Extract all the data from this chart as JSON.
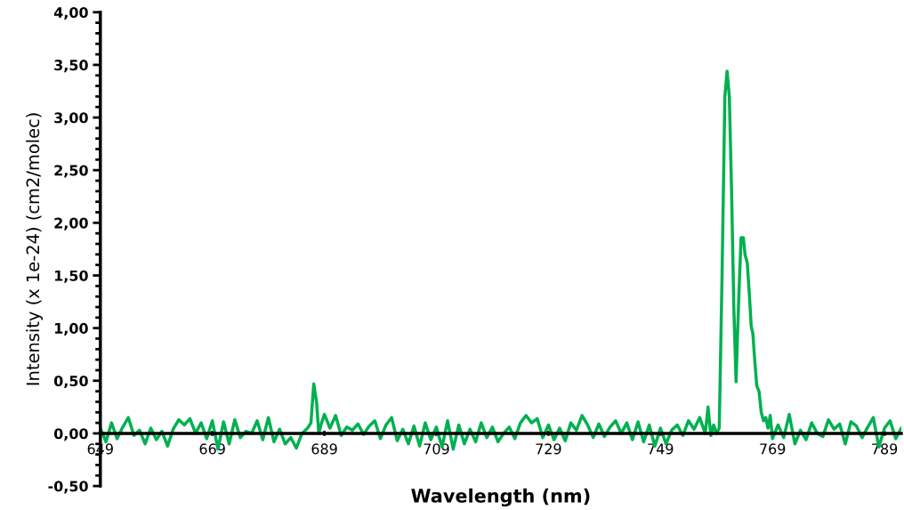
{
  "chart_data": {
    "type": "line",
    "xlabel": "Wavelength (nm)",
    "ylabel": "Intensity (x 1e-24) (cm2/molec)",
    "xlim": [
      649,
      792
    ],
    "xticks": [
      649,
      669,
      689,
      709,
      729,
      749,
      769,
      789
    ],
    "ylim": [
      -0.5,
      4.0
    ],
    "yticks": [
      {
        "value": -0.5,
        "label": "-0,50"
      },
      {
        "value": 0,
        "label": "0,00"
      },
      {
        "value": 0.5,
        "label": "0,50"
      },
      {
        "value": 1.0,
        "label": "1,00"
      },
      {
        "value": 1.5,
        "label": "1,50"
      },
      {
        "value": 2.0,
        "label": "2,00"
      },
      {
        "value": 2.5,
        "label": "2,50"
      },
      {
        "value": 3.0,
        "label": "3,00"
      },
      {
        "value": 3.5,
        "label": "3,50"
      },
      {
        "value": 4.0,
        "label": "4,00"
      }
    ],
    "grid": false,
    "marker": "none",
    "line_style": "solid",
    "series": [
      {
        "color": "#00b050",
        "x": [
          649,
          650,
          651,
          652,
          653,
          654,
          655,
          656,
          657,
          658,
          659,
          660,
          661,
          662,
          663,
          664,
          665,
          666,
          667,
          668,
          669,
          670,
          671,
          672,
          673,
          674,
          675,
          676,
          677,
          678,
          679,
          680,
          681,
          682,
          683,
          684,
          685,
          686,
          686.6,
          687.1,
          687.6,
          688,
          688.5,
          689,
          690,
          691,
          692,
          693,
          694,
          695,
          696,
          697,
          698,
          699,
          700,
          701,
          702,
          703,
          704,
          705,
          706,
          707,
          708,
          709,
          710,
          711,
          712,
          713,
          714,
          715,
          716,
          717,
          718,
          719,
          720,
          721,
          722,
          723,
          724,
          725,
          726,
          727,
          728,
          729,
          730,
          731,
          732,
          733,
          734,
          735,
          736,
          737,
          738,
          739,
          740,
          741,
          742,
          743,
          744,
          745,
          746,
          747,
          748,
          749,
          750,
          751,
          752,
          753,
          754,
          755,
          756,
          757,
          757.5,
          758,
          758.5,
          759,
          759.5,
          760,
          760.5,
          760.9,
          761.3,
          761.7,
          762.1,
          762.5,
          762.8,
          763.1,
          763.4,
          763.8,
          764.1,
          764.5,
          764.9,
          765.2,
          765.5,
          765.8,
          766.2,
          766.6,
          767,
          767.4,
          767.8,
          768.2,
          768.6,
          769,
          770,
          771,
          772,
          773,
          774,
          775,
          776,
          777,
          778,
          779,
          780,
          781,
          782,
          783,
          784,
          785,
          786,
          787,
          788,
          789,
          790,
          791,
          792
        ],
        "values": [
          0.05,
          -0.08,
          0.1,
          -0.05,
          0.06,
          0.15,
          -0.02,
          0.03,
          -0.1,
          0.05,
          -0.06,
          0.02,
          -0.12,
          0.04,
          0.13,
          0.08,
          0.14,
          0.0,
          0.1,
          -0.05,
          0.12,
          -0.15,
          0.11,
          -0.1,
          0.13,
          -0.04,
          0.02,
          0.0,
          0.12,
          -0.06,
          0.15,
          -0.08,
          0.04,
          -0.1,
          -0.04,
          -0.14,
          0.0,
          0.05,
          0.1,
          0.47,
          0.3,
          0.0,
          0.1,
          0.18,
          0.05,
          0.17,
          -0.02,
          0.06,
          0.03,
          0.09,
          -0.01,
          0.07,
          0.12,
          -0.05,
          0.08,
          0.15,
          -0.07,
          0.04,
          -0.1,
          0.07,
          -0.12,
          0.1,
          -0.06,
          0.06,
          -0.13,
          0.12,
          -0.15,
          0.08,
          -0.1,
          0.04,
          -0.08,
          0.1,
          -0.04,
          0.06,
          -0.08,
          0.0,
          0.06,
          -0.05,
          0.1,
          0.17,
          0.1,
          0.14,
          -0.04,
          0.08,
          -0.06,
          0.05,
          -0.07,
          0.1,
          0.03,
          0.17,
          0.08,
          -0.04,
          0.09,
          -0.03,
          0.06,
          0.12,
          0.0,
          0.1,
          -0.06,
          0.11,
          -0.08,
          0.08,
          -0.12,
          0.05,
          -0.1,
          0.03,
          0.08,
          -0.02,
          0.12,
          0.04,
          0.15,
          0.0,
          0.25,
          -0.02,
          0.08,
          0.0,
          0.05,
          1.5,
          3.2,
          3.44,
          3.2,
          2.3,
          1.2,
          0.49,
          1.0,
          1.45,
          1.86,
          1.86,
          1.7,
          1.62,
          1.3,
          1.02,
          0.95,
          0.72,
          0.45,
          0.4,
          0.2,
          0.12,
          0.15,
          0.05,
          0.17,
          -0.05,
          0.08,
          -0.04,
          0.18,
          -0.1,
          0.03,
          -0.06,
          0.1,
          0.0,
          -0.03,
          0.13,
          0.04,
          0.09,
          -0.1,
          0.11,
          0.07,
          -0.04,
          0.06,
          0.15,
          -0.13,
          0.05,
          0.12,
          -0.05,
          0.05
        ]
      }
    ]
  }
}
